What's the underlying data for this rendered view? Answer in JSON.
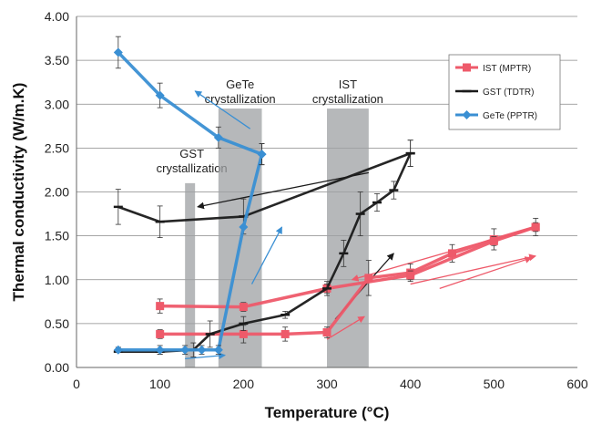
{
  "chart_data": {
    "type": "line",
    "xlabel": "Temperature (°C)",
    "ylabel": "Thermal conductivity (W/m.K)",
    "xlim": [
      0,
      600
    ],
    "ylim": [
      0,
      4
    ],
    "x_ticks": [
      "0",
      "100",
      "200",
      "300",
      "400",
      "500",
      "600"
    ],
    "y_ticks": [
      "0.00",
      "0.50",
      "1.00",
      "1.50",
      "2.00",
      "2.50",
      "3.00",
      "3.50",
      "4.00"
    ],
    "grid": "horizontal",
    "legend_position": "top-right",
    "regions": [
      {
        "label_lines": [
          "GST",
          "crystallization"
        ],
        "x_range": [
          130,
          142
        ],
        "y_range": [
          0,
          2.1
        ]
      },
      {
        "label_lines": [
          "GeTe",
          "crystallization"
        ],
        "x_range": [
          170,
          222
        ],
        "y_range": [
          0,
          2.95
        ]
      },
      {
        "label_lines": [
          "IST",
          "crystallization"
        ],
        "x_range": [
          300,
          350
        ],
        "y_range": [
          0,
          2.95
        ]
      }
    ],
    "series": [
      {
        "name": "IST (MPTR)",
        "color": "#ee5a6a",
        "marker": "square",
        "segments": [
          {
            "x": [
              100,
              200,
              250,
              300,
              350,
              400,
              450,
              500,
              550
            ],
            "y": [
              0.38,
              0.38,
              0.38,
              0.4,
              1.02,
              1.08,
              1.3,
              1.46,
              1.6
            ],
            "err": [
              0.05,
              0.1,
              0.08,
              0.06,
              0.2,
              0.1,
              0.1,
              0.12,
              0.1
            ]
          },
          {
            "x": [
              100,
              200,
              300,
              400,
              500,
              550
            ],
            "y": [
              0.7,
              0.69,
              0.9,
              1.05,
              1.44,
              1.6
            ],
            "err": [
              0.08,
              0.05,
              0.05,
              0.05,
              0.05,
              0.05
            ]
          }
        ]
      },
      {
        "name": "GST (TDTR)",
        "color": "#1a1a1a",
        "marker": "dash",
        "segments": [
          {
            "x": [
              50,
              100,
              140,
              160,
              200,
              250,
              300,
              320,
              340,
              360,
              380,
              400
            ],
            "y": [
              0.18,
              0.18,
              0.2,
              0.38,
              0.5,
              0.6,
              0.9,
              1.3,
              1.75,
              1.88,
              2.02,
              2.44
            ],
            "err": [
              0,
              0.03,
              0.08,
              0.15,
              0.08,
              0.04,
              0.08,
              0.15,
              0.25,
              0.1,
              0.1,
              0.15
            ]
          },
          {
            "x": [
              400,
              200,
              100,
              50
            ],
            "y": [
              2.44,
              1.72,
              1.66,
              1.83
            ],
            "err": [
              0.15,
              0.2,
              0.18,
              0.2
            ]
          }
        ]
      },
      {
        "name": "GeTe (PPTR)",
        "color": "#3a8fd3",
        "marker": "diamond",
        "segments": [
          {
            "x": [
              50,
              100,
              130,
              150,
              170,
              200,
              222
            ],
            "y": [
              0.2,
              0.2,
              0.2,
              0.2,
              0.2,
              1.6,
              2.43
            ],
            "err": [
              0.03,
              0.05,
              0.05,
              0.05,
              0.05,
              0,
              0.12
            ]
          },
          {
            "x": [
              222,
              170,
              100,
              50
            ],
            "y": [
              2.43,
              2.62,
              3.1,
              3.59
            ],
            "err": [
              0.12,
              0.12,
              0.14,
              0.18
            ]
          }
        ]
      }
    ]
  }
}
